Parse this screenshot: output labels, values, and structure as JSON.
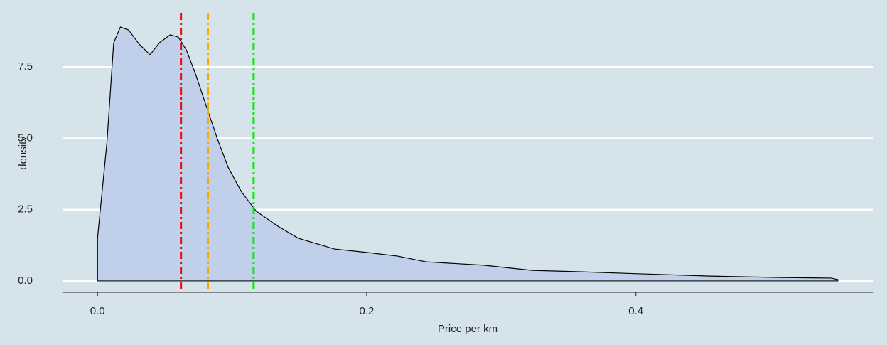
{
  "chart_data": {
    "type": "density",
    "xlabel": "Price per km",
    "ylabel": "density",
    "x": [
      0,
      0.007,
      0.012,
      0.017,
      0.023,
      0.031,
      0.039,
      0.046,
      0.054,
      0.06,
      0.066,
      0.073,
      0.081,
      0.089,
      0.097,
      0.107,
      0.118,
      0.134,
      0.149,
      0.176,
      0.2,
      0.223,
      0.244,
      0.287,
      0.323,
      0.36,
      0.403,
      0.455,
      0.508,
      0.545,
      0.55
    ],
    "values": [
      1.5,
      4.86,
      8.35,
      8.9,
      8.8,
      8.3,
      7.93,
      8.35,
      8.63,
      8.55,
      8.1,
      7.23,
      6.1,
      4.99,
      3.99,
      3.12,
      2.44,
      1.92,
      1.5,
      1.12,
      1.0,
      0.87,
      0.67,
      0.55,
      0.37,
      0.32,
      0.25,
      0.17,
      0.12,
      0.1,
      0.05
    ],
    "fill": "#c0cfea",
    "line_color": "#000000",
    "vlines": [
      {
        "x": 0.062,
        "color": "#ff0000"
      },
      {
        "x": 0.082,
        "color": "#ffa500"
      },
      {
        "x": 0.116,
        "color": "#00ee00"
      }
    ],
    "xlim": [
      -0.026,
      0.576
    ],
    "ylim": [
      -0.4,
      9.4
    ],
    "xticks": [
      {
        "value": 0,
        "label": "0.0"
      },
      0.2,
      0.4
    ],
    "yticks": [
      {
        "value": 0,
        "label": "0.0"
      },
      2.5,
      {
        "value": 5,
        "label": "5.0"
      },
      7.5
    ],
    "grid": true
  }
}
